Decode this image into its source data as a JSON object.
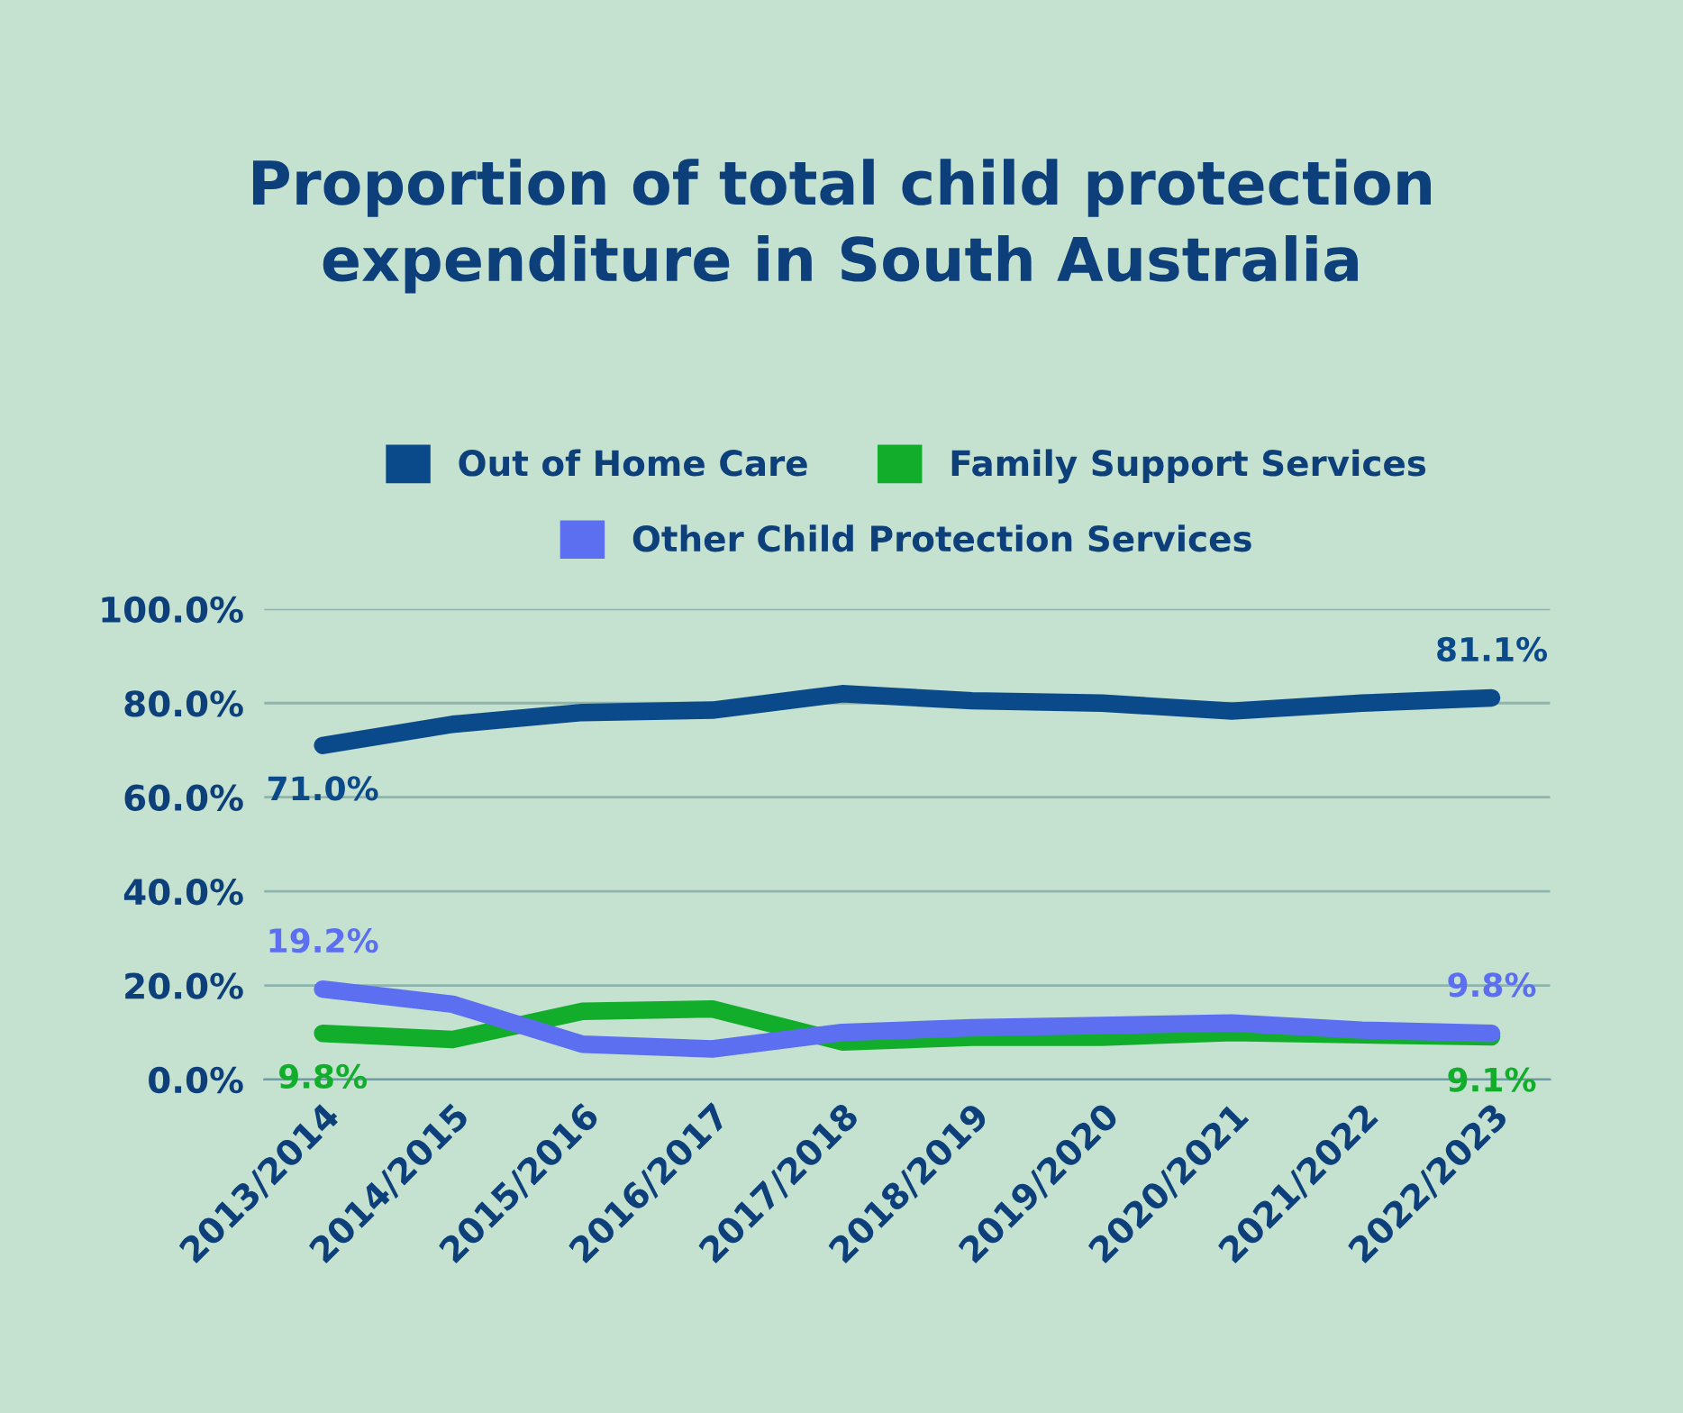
{
  "chart_data": {
    "type": "line",
    "title": "Proportion of total child protection\nexpenditure in South Australia",
    "categories": [
      "2013/2014",
      "2014/2015",
      "2015/2016",
      "2016/2017",
      "2017/2018",
      "2018/2019",
      "2019/2020",
      "2020/2021",
      "2021/2022",
      "2022/2023"
    ],
    "series": [
      {
        "name": "Out of Home Care",
        "color": "#0b4a8a",
        "values": [
          71.0,
          75.5,
          78.0,
          78.5,
          82.0,
          80.5,
          80.0,
          78.3,
          80.0,
          81.1
        ],
        "value_labels": [
          "71.0%",
          null,
          null,
          null,
          null,
          null,
          null,
          null,
          null,
          "81.1%"
        ]
      },
      {
        "name": "Family Support Services",
        "color": "#12ad2b",
        "values": [
          9.8,
          8.5,
          14.5,
          15.0,
          8.0,
          9.0,
          9.0,
          10.0,
          9.5,
          9.1
        ],
        "value_labels": [
          "9.8%",
          null,
          null,
          null,
          null,
          null,
          null,
          null,
          null,
          "9.1%"
        ]
      },
      {
        "name": "Other Child Protection Services",
        "color": "#5b6ff0",
        "values": [
          19.2,
          16.0,
          7.5,
          6.5,
          10.0,
          11.0,
          11.5,
          12.0,
          10.5,
          9.8
        ],
        "value_labels": [
          "19.2%",
          null,
          null,
          null,
          null,
          null,
          null,
          null,
          null,
          "9.8%"
        ]
      }
    ],
    "ylim": [
      0,
      100
    ],
    "yticks": [
      {
        "value": 0,
        "label": "0.0%"
      },
      {
        "value": 20,
        "label": "20.0%"
      },
      {
        "value": 40,
        "label": "40.0%"
      },
      {
        "value": 60,
        "label": "60.0%"
      },
      {
        "value": 80,
        "label": "80.0%"
      },
      {
        "value": 100,
        "label": "100.0%"
      }
    ],
    "grid": "y",
    "legend": "top",
    "marker": "none",
    "line_style": "solid"
  }
}
